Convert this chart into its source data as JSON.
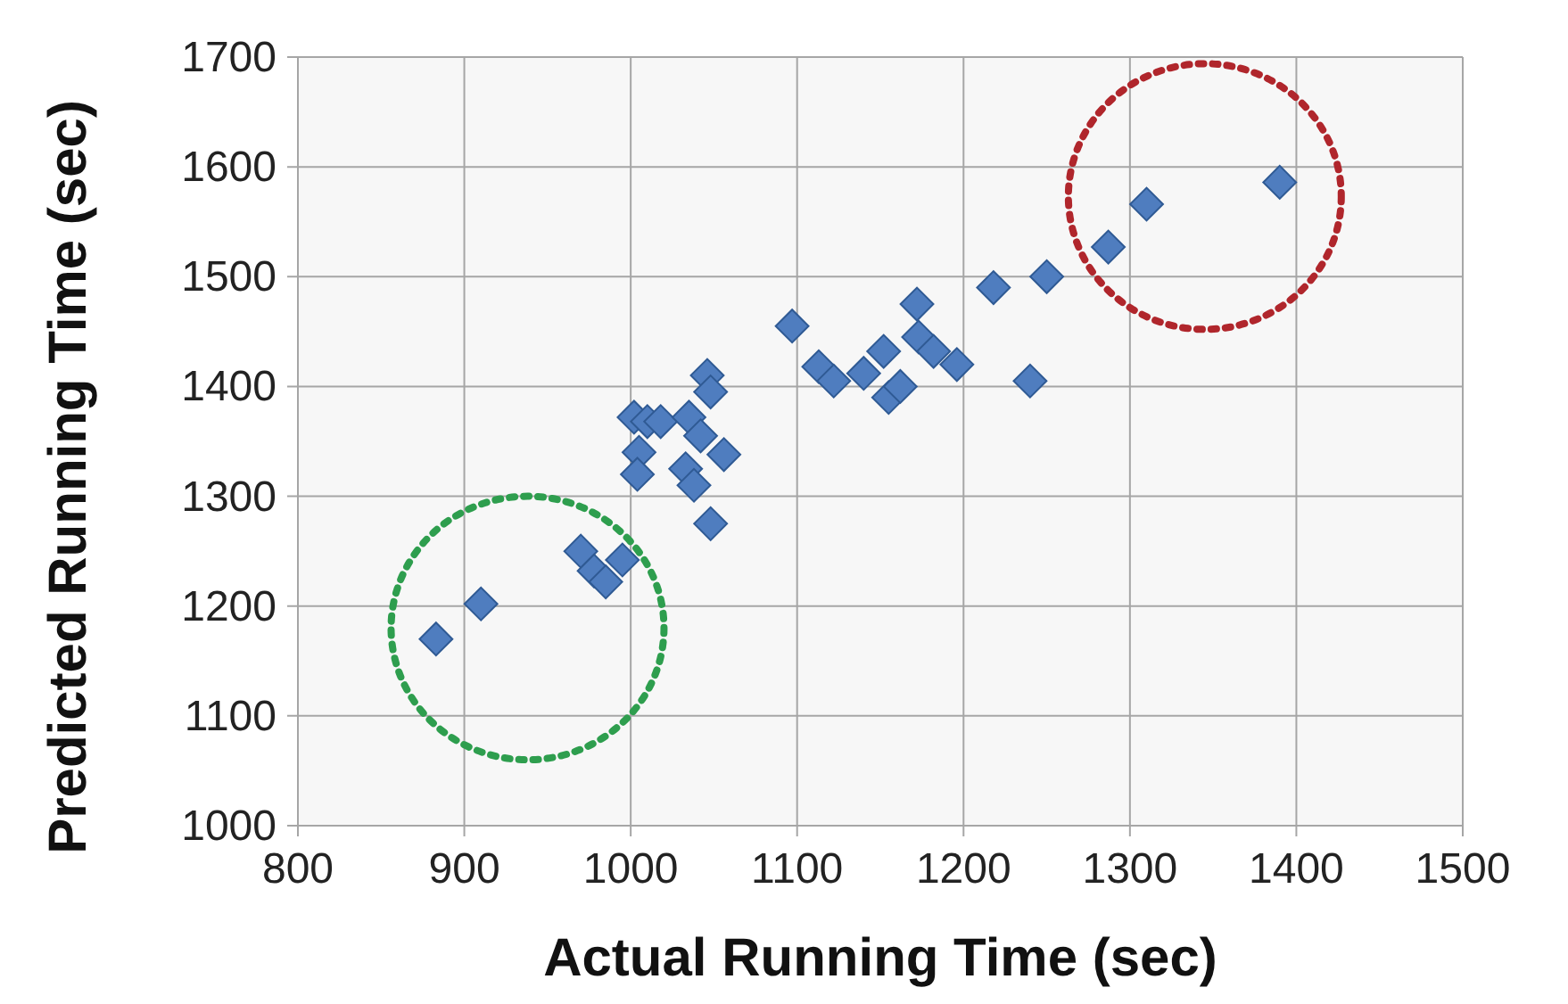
{
  "chart_data": {
    "type": "scatter",
    "xlabel": "Actual Running Time (sec)",
    "ylabel": "Predicted Running Time (sec)",
    "xlim": [
      800,
      1500
    ],
    "xticks": [
      800,
      900,
      1000,
      1100,
      1200,
      1300,
      1400,
      1500
    ],
    "ylim": [
      1000,
      1700
    ],
    "yticks": [
      1000,
      1100,
      1200,
      1300,
      1400,
      1500,
      1600,
      1700
    ],
    "grid": true,
    "marker": "diamond",
    "series": [
      {
        "color": "#4f7dbf",
        "x": [
          883,
          910,
          970,
          978,
          985,
          995,
          1002,
          1005,
          1004,
          1010,
          1018,
          1035,
          1033,
          1038,
          1042,
          1046,
          1048,
          1048,
          1056,
          1097,
          1113,
          1122,
          1140,
          1152,
          1155,
          1162,
          1172,
          1173,
          1182,
          1196,
          1218,
          1240,
          1250,
          1287,
          1310,
          1390
        ],
        "values": [
          1170,
          1202,
          1250,
          1232,
          1222,
          1242,
          1372,
          1340,
          1320,
          1368,
          1368,
          1372,
          1325,
          1310,
          1355,
          1410,
          1395,
          1275,
          1338,
          1455,
          1418,
          1405,
          1412,
          1432,
          1390,
          1400,
          1475,
          1445,
          1432,
          1420,
          1490,
          1405,
          1500,
          1527,
          1566,
          1586
        ]
      }
    ]
  }
}
